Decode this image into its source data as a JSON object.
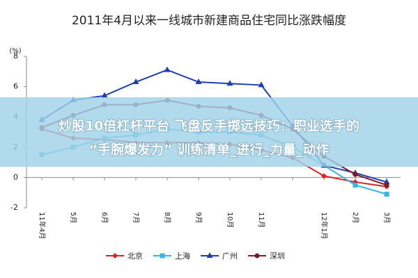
{
  "chart_data": {
    "type": "line",
    "title": "2011年4月以来一线城市新建商品住宅同比涨跌幅度",
    "y_label": "(%)",
    "categories": [
      "11年4月",
      "5月",
      "6月",
      "7月",
      "8月",
      "9月",
      "10月",
      "11月",
      null,
      "12年1月",
      "2月",
      "3月"
    ],
    "series": [
      {
        "name": "北京",
        "color": "#e0201e",
        "marker": "diamond",
        "values": [
          3.2,
          2.6,
          2.5,
          2.3,
          2.3,
          2.3,
          2.2,
          1.8,
          1.3,
          0.1,
          -0.3,
          -0.6
        ]
      },
      {
        "name": "上海",
        "color": "#33b5e5",
        "marker": "square",
        "values": [
          1.5,
          2.0,
          2.6,
          2.8,
          3.2,
          3.0,
          3.0,
          2.8,
          2.0,
          0.8,
          -0.5,
          -1.1
        ]
      },
      {
        "name": "广州",
        "color": "#1e3fb0",
        "marker": "triangle",
        "values": [
          3.8,
          5.1,
          5.4,
          6.3,
          7.1,
          6.3,
          6.2,
          6.1,
          3.4,
          0.8,
          0.3,
          -0.3
        ]
      },
      {
        "name": "深圳",
        "color": "#7b1c2a",
        "marker": "circle",
        "values": [
          3.3,
          4.1,
          4.8,
          4.8,
          5.1,
          4.7,
          4.6,
          4.1,
          3.2,
          1.4,
          0.2,
          -0.5
        ]
      }
    ],
    "ylim": [
      -2,
      8
    ],
    "yticks": [
      -2,
      0,
      2,
      4,
      6,
      8
    ],
    "overlay_text": [
      "炒股10倍杠杆平台 飞盘反手掷远技巧：职业选手的",
      "“手腕爆发力” 训练清单_进行_力量_动作"
    ]
  }
}
